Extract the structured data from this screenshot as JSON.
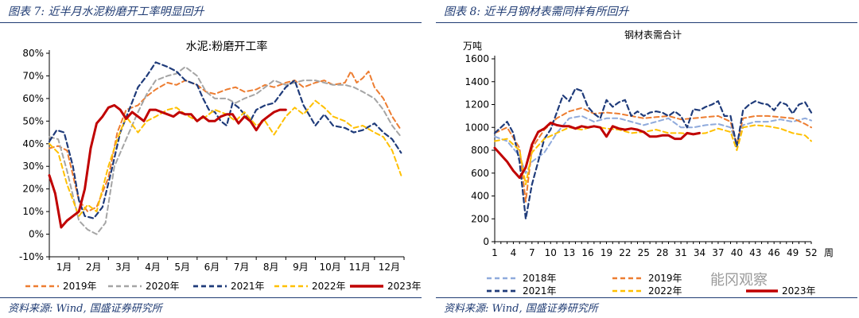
{
  "left": {
    "figure_title": "图表 7:  近半月水泥粉磨开工率明显回升",
    "source": "资料来源:  Wind,  国盛证券研究所"
  },
  "right": {
    "figure_title": "图表 8:  近半月钢材表需同样有所回升",
    "source": "资料来源:  Wind,  国盛证券研究所"
  },
  "watermark": "能冈观察",
  "chart_data": [
    {
      "type": "line",
      "title": "水泥:粉磨开工率",
      "xlabel": "",
      "ylabel": "",
      "x_unit": "month",
      "xlim": [
        1,
        13
      ],
      "ylim": [
        -10,
        80
      ],
      "y_ticks": [
        -10,
        0,
        10,
        20,
        30,
        40,
        50,
        60,
        70,
        80
      ],
      "y_tick_suffix": "%",
      "x_tick_labels": [
        "1月",
        "2月",
        "3月",
        "4月",
        "5月",
        "6月",
        "7月",
        "8月",
        "9月",
        "10月",
        "11月",
        "12月"
      ],
      "grid": false,
      "legend": "bottom",
      "series": [
        {
          "name": "2019年",
          "color": "#ed7d31",
          "dash": "dashed",
          "width": 2,
          "x": [
            1,
            1.3,
            1.6,
            2,
            2.3,
            2.6,
            3,
            3.3,
            3.6,
            4,
            4.3,
            4.6,
            5,
            5.3,
            5.6,
            6,
            6.3,
            6.6,
            7,
            7.3,
            7.6,
            8,
            8.3,
            8.6,
            9,
            9.3,
            9.6,
            10,
            10.3,
            10.6,
            11,
            11.2,
            11.4,
            11.6,
            11.8,
            12,
            12.3,
            12.6,
            12.9
          ],
          "y": [
            38,
            39,
            37,
            15,
            10,
            12,
            25,
            45,
            55,
            57,
            61,
            64,
            67,
            66,
            68,
            66,
            63,
            62,
            64,
            65,
            63,
            64,
            66,
            65,
            67,
            68,
            65,
            67,
            68,
            66,
            67,
            72,
            67,
            69,
            72,
            65,
            60,
            52,
            46
          ]
        },
        {
          "name": "2020年",
          "color": "#a5a5a5",
          "dash": "dashed",
          "width": 2,
          "x": [
            1,
            1.3,
            1.6,
            2,
            2.3,
            2.6,
            2.9,
            3.2,
            3.6,
            4,
            4.3,
            4.6,
            5,
            5.3,
            5.6,
            6,
            6.3,
            6.6,
            7,
            7.3,
            7.6,
            8,
            8.3,
            8.6,
            9,
            9.3,
            9.6,
            10,
            10.3,
            10.6,
            11,
            11.3,
            11.6,
            12,
            12.3,
            12.6,
            12.9
          ],
          "y": [
            43,
            42,
            28,
            6,
            2,
            0,
            5,
            30,
            42,
            54,
            62,
            68,
            70,
            71,
            74,
            70,
            63,
            60,
            60,
            58,
            60,
            62,
            65,
            68,
            66,
            67,
            68,
            68,
            67,
            66,
            66,
            65,
            63,
            60,
            55,
            48,
            43
          ]
        },
        {
          "name": "2021年",
          "color": "#1f3b7a",
          "dash": "dashed",
          "width": 2.2,
          "x": [
            1,
            1.25,
            1.5,
            1.8,
            2,
            2.2,
            2.5,
            2.8,
            3.1,
            3.4,
            3.7,
            4,
            4.3,
            4.6,
            5,
            5.3,
            5.6,
            6,
            6.2,
            6.4,
            6.6,
            6.8,
            7,
            7.2,
            7.4,
            7.6,
            7.8,
            8,
            8.3,
            8.6,
            9,
            9.3,
            9.6,
            10,
            10.3,
            10.6,
            11,
            11.3,
            11.6,
            12,
            12.3,
            12.6,
            12.9
          ],
          "y": [
            41,
            46,
            45,
            30,
            15,
            8,
            7,
            12,
            28,
            45,
            55,
            65,
            70,
            76,
            74,
            72,
            68,
            66,
            60,
            55,
            54,
            50,
            48,
            58,
            56,
            53,
            50,
            55,
            57,
            58,
            65,
            68,
            57,
            48,
            53,
            48,
            47,
            45,
            46,
            49,
            45,
            42,
            36
          ]
        },
        {
          "name": "2022年",
          "color": "#ffc000",
          "dash": "dashed",
          "width": 2,
          "x": [
            1,
            1.3,
            1.6,
            2,
            2.3,
            2.6,
            3,
            3.3,
            3.6,
            4,
            4.3,
            4.6,
            5,
            5.3,
            5.6,
            6,
            6.3,
            6.6,
            7,
            7.3,
            7.6,
            8,
            8.3,
            8.6,
            9,
            9.3,
            9.6,
            10,
            10.3,
            10.6,
            11,
            11.3,
            11.6,
            12,
            12.3,
            12.6,
            12.9
          ],
          "y": [
            40,
            36,
            22,
            8,
            13,
            10,
            30,
            42,
            52,
            45,
            50,
            52,
            55,
            56,
            53,
            50,
            52,
            55,
            53,
            50,
            54,
            48,
            50,
            44,
            52,
            56,
            53,
            59,
            56,
            52,
            50,
            47,
            48,
            45,
            43,
            37,
            26
          ]
        },
        {
          "name": "2023年",
          "color": "#c00000",
          "dash": "solid",
          "width": 3,
          "x": [
            1,
            1.2,
            1.4,
            1.6,
            1.8,
            2,
            2.2,
            2.4,
            2.6,
            2.8,
            3.0,
            3.2,
            3.4,
            3.6,
            3.8,
            4,
            4.2,
            4.4,
            4.6,
            4.8,
            5,
            5.2,
            5.4,
            5.6,
            5.8,
            6,
            6.2,
            6.4,
            6.6,
            6.8,
            7,
            7.2,
            7.4,
            7.6,
            7.8,
            8,
            8.2,
            8.4,
            8.6,
            8.8,
            9
          ],
          "y": [
            26,
            18,
            3,
            6,
            8,
            10,
            20,
            38,
            49,
            52,
            56,
            57,
            55,
            51,
            54,
            52,
            50,
            55,
            55,
            54,
            53,
            52,
            54,
            53,
            53,
            50,
            52,
            50,
            50,
            52,
            53,
            53,
            49,
            52,
            50,
            46,
            50,
            52,
            54,
            55,
            55
          ]
        }
      ]
    },
    {
      "type": "line",
      "title": "钢材表需合计",
      "xlabel": "周",
      "ylabel": "万吨",
      "xlim": [
        1,
        52
      ],
      "ylim": [
        0,
        1600
      ],
      "y_ticks": [
        0,
        200,
        400,
        600,
        800,
        1000,
        1200,
        1400,
        1600
      ],
      "x_ticks": [
        1,
        4,
        7,
        10,
        13,
        16,
        19,
        22,
        25,
        28,
        31,
        34,
        37,
        40,
        43,
        46,
        49,
        52
      ],
      "grid": false,
      "legend": "bottom",
      "series": [
        {
          "name": "2018年",
          "color": "#8faadc",
          "dash": "dashed",
          "width": 2,
          "x": [
            1,
            3,
            5,
            6,
            7,
            9,
            11,
            13,
            15,
            17,
            19,
            21,
            23,
            25,
            27,
            29,
            31,
            33,
            35,
            37,
            39,
            40,
            41,
            43,
            45,
            47,
            49,
            51,
            52
          ],
          "y": [
            920,
            880,
            750,
            600,
            700,
            780,
            950,
            1080,
            1100,
            1050,
            1080,
            1080,
            1050,
            1020,
            1050,
            1080,
            1000,
            1000,
            1020,
            1030,
            1000,
            850,
            1020,
            1050,
            1050,
            1070,
            1050,
            1080,
            1060
          ]
        },
        {
          "name": "2019年",
          "color": "#ed7d31",
          "dash": "dashed",
          "width": 2,
          "x": [
            1,
            3,
            5,
            6,
            7,
            9,
            11,
            13,
            15,
            17,
            19,
            21,
            23,
            25,
            27,
            29,
            31,
            33,
            35,
            37,
            39,
            40,
            41,
            43,
            45,
            47,
            49,
            51,
            52
          ],
          "y": [
            950,
            1000,
            820,
            350,
            820,
            980,
            1080,
            1140,
            1170,
            1120,
            1130,
            1120,
            1100,
            1080,
            1090,
            1100,
            1070,
            1080,
            1090,
            1100,
            1050,
            850,
            1080,
            1100,
            1100,
            1090,
            1080,
            1030,
            1000
          ]
        },
        {
          "name": "2021年",
          "color": "#1f3b7a",
          "dash": "dashed",
          "width": 2.2,
          "x": [
            1,
            3,
            4,
            5,
            6,
            7,
            9,
            10,
            12,
            13,
            14,
            15,
            16,
            17,
            18,
            19,
            20,
            21,
            22,
            23,
            24,
            25,
            26,
            27,
            28,
            29,
            30,
            31,
            32,
            33,
            34,
            35,
            36,
            37,
            38,
            39,
            40,
            41,
            42,
            43,
            44,
            45,
            46,
            47,
            48,
            49,
            50,
            51,
            52
          ],
          "y": [
            950,
            1050,
            950,
            700,
            200,
            500,
            900,
            980,
            1280,
            1230,
            1340,
            1320,
            1180,
            1120,
            1080,
            1240,
            1180,
            1220,
            1240,
            1100,
            1140,
            1100,
            1130,
            1140,
            1130,
            1100,
            1140,
            1100,
            1000,
            1160,
            1150,
            1180,
            1200,
            1230,
            1100,
            1100,
            830,
            1150,
            1200,
            1230,
            1210,
            1200,
            1150,
            1220,
            1200,
            1120,
            1200,
            1220,
            1130
          ]
        },
        {
          "name": "2022年",
          "color": "#ffc000",
          "dash": "dashed",
          "width": 2,
          "x": [
            1,
            3,
            5,
            6,
            7,
            9,
            11,
            13,
            15,
            17,
            19,
            21,
            23,
            25,
            27,
            29,
            31,
            33,
            35,
            37,
            39,
            40,
            41,
            43,
            45,
            47,
            49,
            51,
            52
          ],
          "y": [
            880,
            900,
            800,
            500,
            780,
            900,
            950,
            1000,
            980,
            1010,
            990,
            980,
            950,
            960,
            980,
            950,
            950,
            940,
            950,
            990,
            960,
            800,
            1000,
            1020,
            1010,
            990,
            950,
            930,
            880
          ]
        },
        {
          "name": "2023年",
          "color": "#c00000",
          "dash": "solid",
          "width": 3,
          "x": [
            1,
            2,
            3,
            4,
            5,
            6,
            7,
            8,
            9,
            10,
            11,
            12,
            13,
            14,
            15,
            16,
            17,
            18,
            19,
            20,
            21,
            22,
            23,
            24,
            25,
            26,
            27,
            28,
            29,
            30,
            31,
            32,
            33,
            34
          ],
          "y": [
            820,
            760,
            700,
            620,
            560,
            650,
            850,
            960,
            990,
            1040,
            1020,
            1010,
            1010,
            990,
            1010,
            1000,
            1010,
            1000,
            920,
            1010,
            990,
            980,
            990,
            980,
            960,
            920,
            920,
            930,
            930,
            900,
            900,
            950,
            940,
            950
          ]
        }
      ]
    }
  ]
}
